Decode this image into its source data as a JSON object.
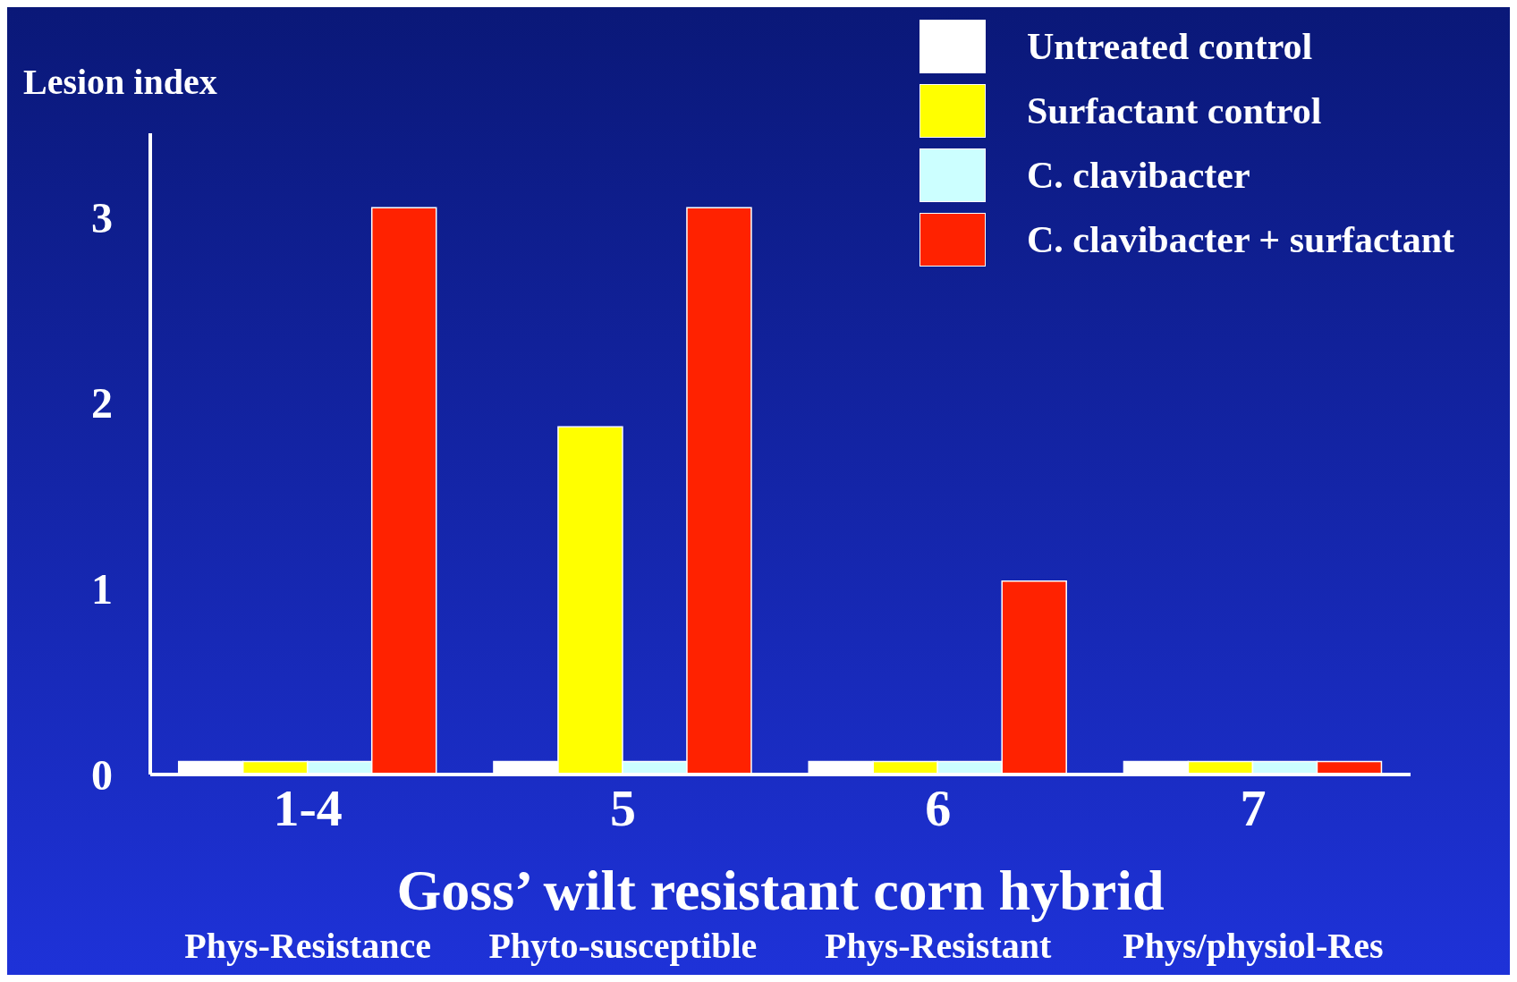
{
  "chart_data": {
    "type": "bar",
    "ylabel": "Lesion index",
    "xlabel": "Goss’ wilt resistant corn hybrid",
    "categories": [
      "1-4",
      "5",
      "6",
      "7"
    ],
    "series": [
      {
        "name": "Untreated control",
        "color": "#ffffff",
        "values": [
          0.07,
          0.07,
          0.07,
          0.07
        ]
      },
      {
        "name": "Surfactant control",
        "color": "#ffff00",
        "values": [
          0.07,
          1.87,
          0.07,
          0.07
        ]
      },
      {
        "name": "C. clavibacter",
        "color": "#ccffff",
        "values": [
          0.07,
          0.07,
          0.07,
          0.07
        ]
      },
      {
        "name": "C. clavibacter + surfactant",
        "color": "#ff2200",
        "values": [
          3.05,
          3.05,
          1.04,
          0.07
        ]
      }
    ],
    "ylim": [
      0,
      3.45
    ],
    "yticks": [
      0,
      1,
      2,
      3
    ],
    "grid": false,
    "legend": "top right",
    "annotations": [
      "Phys-Resistance",
      "Phyto-susceptible",
      "Phys-Resistant",
      "Phys/physiol-Res"
    ]
  }
}
